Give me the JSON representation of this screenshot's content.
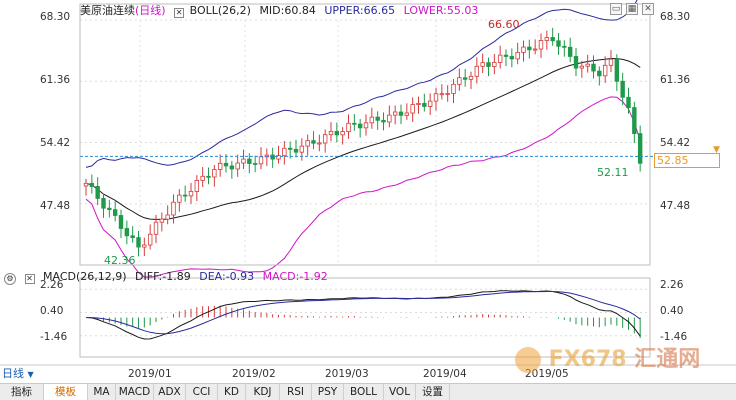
{
  "header": {
    "name": "美原油连续",
    "period": "(日线)",
    "boll_label": "BOLL(26,2)",
    "mid": "MID:60.84",
    "upper": "UPPER:66.65",
    "lower": "LOWER:55.03"
  },
  "macd_header": {
    "label": "MACD(26,12,9)",
    "diff": "DIFF:-1.89",
    "dea": "DEA:-0.93",
    "macd": "MACD:-1.92"
  },
  "price_axis": {
    "ticks": [
      "68.30",
      "61.36",
      "54.42",
      "47.48"
    ],
    "current_price": "52.85"
  },
  "macd_axis": {
    "ticks": [
      "2.26",
      "0.40",
      "-1.46"
    ]
  },
  "annotations": {
    "high": "66.60",
    "low": "42.36",
    "last_low": "52.11"
  },
  "x_axis": {
    "ticks": [
      "2019/01",
      "2019/02",
      "2019/03",
      "2019/04",
      "2019/05"
    ]
  },
  "period_selector": {
    "label": "日线"
  },
  "tabs": [
    "指标",
    "模板",
    "MA",
    "MACD",
    "ADX",
    "CCI",
    "KD",
    "KDJ",
    "RSI",
    "PSY",
    "BOLL",
    "VOL",
    "设置"
  ],
  "active_tab": "模板",
  "watermark": {
    "brand": "FX678",
    "cn": "汇通网"
  },
  "colors": {
    "up": "#d63a3a",
    "down": "#1e9a4a",
    "mid": "#1a1a1a",
    "upper": "#2a2a9e",
    "lower": "#d014c8",
    "diff": "#1a1a1a",
    "dea": "#2a2a9e",
    "current": "#2a8ad6",
    "accent": "#e89a2c"
  },
  "icons": [
    "window-restore-icon",
    "grid-icon",
    "close-icon"
  ]
}
